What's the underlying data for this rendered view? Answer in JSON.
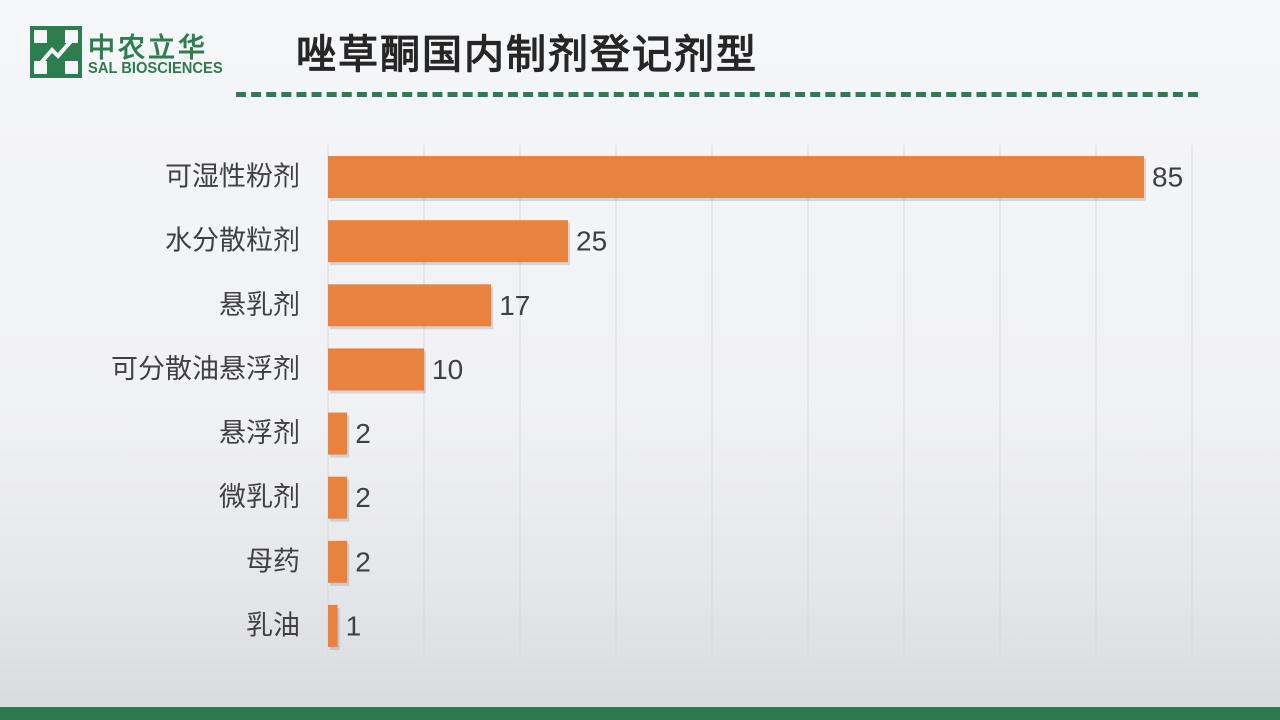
{
  "header": {
    "logo_cn": "中农立华",
    "logo_en": "SAL BIOSCIENCES",
    "title": "唑草酮国内制剂登记剂型"
  },
  "colors": {
    "brand_green": "#2e7d4f",
    "bar_orange": "#e8823e",
    "grid": "#d9d9d9",
    "text": "#404040"
  },
  "icons": {
    "logo": "sal-cross-logo-icon"
  },
  "chart_data": {
    "type": "bar",
    "orientation": "horizontal",
    "title": "唑草酮国内制剂登记剂型",
    "categories": [
      "可湿性粉剂",
      "水分散粒剂",
      "悬乳剂",
      "可分散油悬浮剂",
      "悬浮剂",
      "微乳剂",
      "母药",
      "乳油"
    ],
    "values": [
      85,
      25,
      17,
      10,
      2,
      2,
      2,
      1
    ],
    "xlim": [
      0,
      90
    ],
    "grid": true,
    "data_labels": true,
    "legend": "none"
  }
}
